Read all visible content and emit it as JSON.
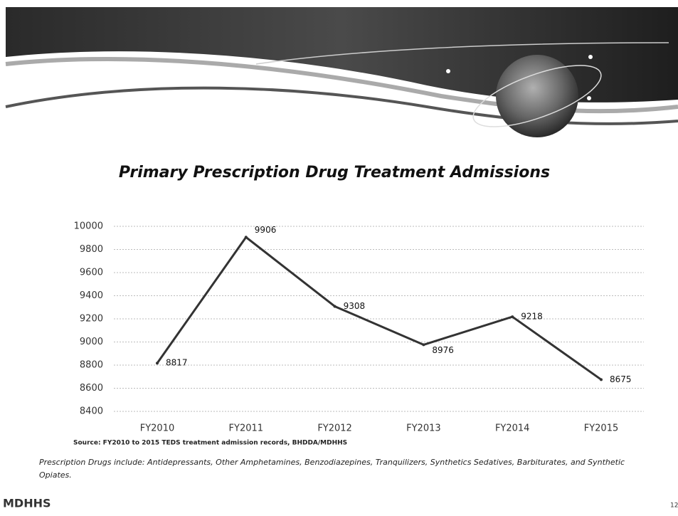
{
  "chart_data": {
    "type": "line",
    "title": "Primary Prescription Drug Treatment Admissions",
    "categories": [
      "FY2010",
      "FY2011",
      "FY2012",
      "FY2013",
      "FY2014",
      "FY2015"
    ],
    "values": [
      8817,
      9906,
      9308,
      8976,
      9218,
      8675
    ],
    "color": "#333333",
    "ylim": [
      8400,
      10000
    ],
    "yticks": [
      8400,
      8600,
      8800,
      9000,
      9200,
      9400,
      9600,
      9800,
      10000
    ],
    "grid": true
  },
  "source": "Source: FY2010 to 2015 TEDS treatment admission records, BHDDA/MDHHS",
  "note": "Prescription Drugs include: Antidepressants, Other Amphetamines, Benzodiazepines,  Tranquilizers, Synthetics Sedatives, Barbiturates, and Synthetic Opiates.",
  "logo": "MDHHS",
  "page_number": "12"
}
